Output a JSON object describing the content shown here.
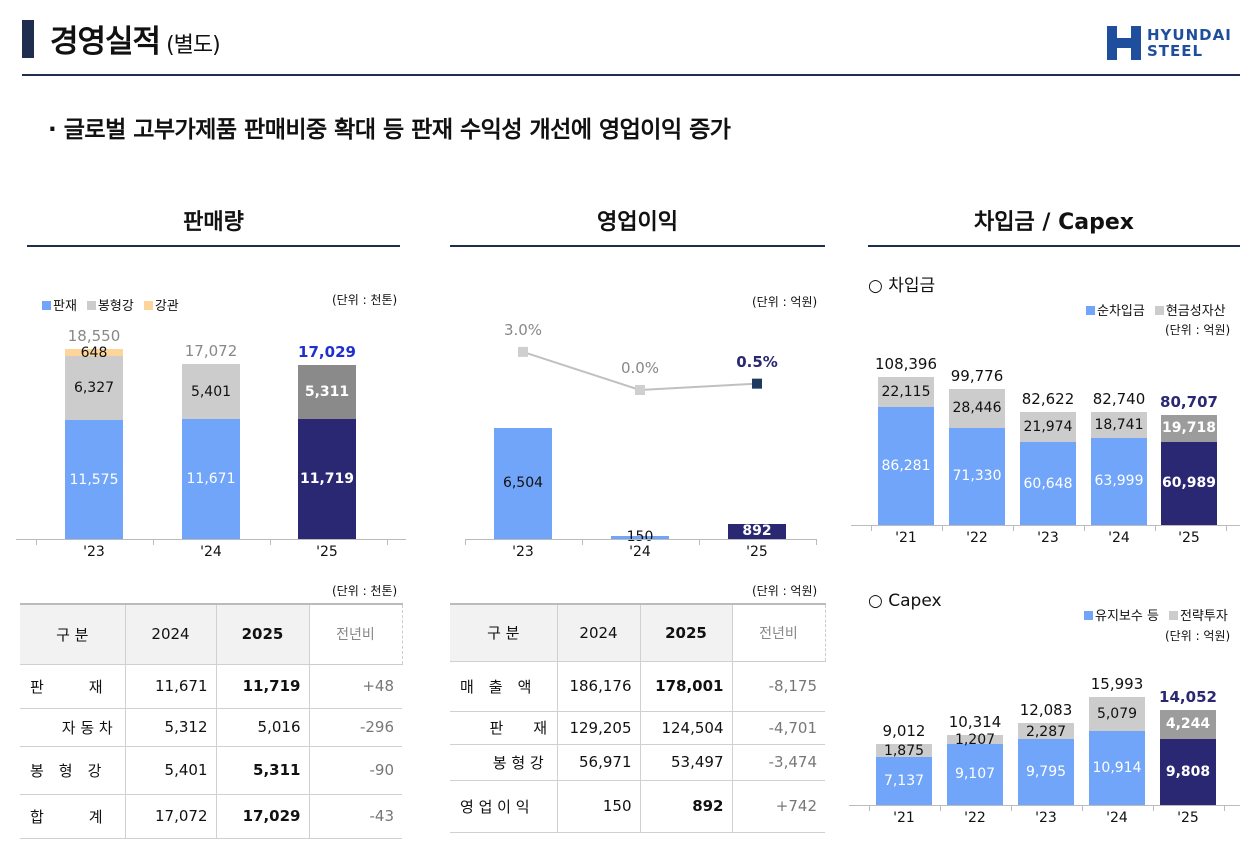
{
  "header": {
    "title": "경영실적",
    "title_suffix": "(별도)",
    "logo_line1": "HYUNDAI",
    "logo_line2": "STEEL"
  },
  "subtitle": "· 글로벌 고부가제품 판매비중 확대 등 판재 수익성 개선에 영업이익 증가",
  "sections": {
    "sales": "판매량",
    "op": "영업이익",
    "debt": "차입금 / Capex"
  },
  "colors": {
    "light_blue": "#70a5f9",
    "gray": "#cccccc",
    "dark_gray": "#8a8a8a",
    "navy": "#2a2872",
    "orange": "#fdd49a",
    "highlight": "#1f2fd0"
  },
  "chart_data": [
    {
      "type": "bar",
      "stacked": true,
      "title": "판매량",
      "unit": "(단위 : 천톤)",
      "categories": [
        "'23",
        "'24",
        "'25"
      ],
      "series": [
        {
          "name": "판재",
          "values": [
            11575,
            11671,
            11719
          ]
        },
        {
          "name": "봉형강",
          "values": [
            6327,
            5401,
            5311
          ]
        },
        {
          "name": "강관",
          "values": [
            648,
            0,
            0
          ]
        }
      ],
      "totals": [
        "18,550",
        "17,072",
        "17,029"
      ],
      "labels": [
        [
          "11,575",
          "11,671",
          "11,719"
        ],
        [
          "6,327",
          "5,401",
          "5,311"
        ],
        [
          "648",
          "",
          ""
        ]
      ]
    },
    {
      "type": "bar+line",
      "title": "영업이익",
      "unit": "(단위 : 억원)",
      "categories": [
        "'23",
        "'24",
        "'25"
      ],
      "bars": {
        "values": [
          6504,
          150,
          892
        ],
        "labels": [
          "6,504",
          "150",
          "892"
        ]
      },
      "line": {
        "values": [
          3.0,
          0.0,
          0.5
        ],
        "labels": [
          "3.0%",
          "0.0%",
          "0.5%"
        ]
      }
    },
    {
      "type": "bar",
      "stacked": true,
      "title": "차입금",
      "heading": "○ 차입금",
      "unit": "(단위 : 억원)",
      "categories": [
        "'21",
        "'22",
        "'23",
        "'24",
        "'25"
      ],
      "series": [
        {
          "name": "순차입금",
          "values": [
            86281,
            71330,
            60648,
            63999,
            60989
          ]
        },
        {
          "name": "현금성자산",
          "values": [
            22115,
            28446,
            21974,
            18741,
            19718
          ]
        }
      ],
      "totals": [
        "108,396",
        "99,776",
        "82,622",
        "82,740",
        "80,707"
      ],
      "labels": [
        [
          "86,281",
          "71,330",
          "60,648",
          "63,999",
          "60,989"
        ],
        [
          "22,115",
          "28,446",
          "21,974",
          "18,741",
          "19,718"
        ]
      ]
    },
    {
      "type": "bar",
      "stacked": true,
      "title": "Capex",
      "heading": "○ Capex",
      "unit": "(단위 : 억원)",
      "categories": [
        "'21",
        "'22",
        "'23",
        "'24",
        "'25"
      ],
      "series": [
        {
          "name": "유지보수 등",
          "values": [
            7137,
            9107,
            9795,
            10914,
            9808
          ]
        },
        {
          "name": "전략투자",
          "values": [
            1875,
            1207,
            2287,
            5079,
            4244
          ]
        }
      ],
      "totals": [
        "9,012",
        "10,314",
        "12,083",
        "15,993",
        "14,052"
      ],
      "labels": [
        [
          "7,137",
          "9,107",
          "9,795",
          "10,914",
          "9,808"
        ],
        [
          "1,875",
          "1,207",
          "2,287",
          "5,079",
          "4,244"
        ]
      ]
    }
  ],
  "table_sales": {
    "unit": "(단위 : 천톤)",
    "headers": [
      "구 분",
      "2024",
      "2025",
      "전년비"
    ],
    "rows": [
      [
        "판　　　재",
        "11,671",
        "11,719",
        "+48"
      ],
      [
        "자 동 차",
        "5,312",
        "5,016",
        "-296"
      ],
      [
        "봉　형　강",
        "5,401",
        "5,311",
        "-90"
      ],
      [
        "합　　　계",
        "17,072",
        "17,029",
        "-43"
      ]
    ]
  },
  "table_op": {
    "unit": "(단위 : 억원)",
    "headers": [
      "구 분",
      "2024",
      "2025",
      "전년비"
    ],
    "rows": [
      [
        "매　출　액",
        "186,176",
        "178,001",
        "-8,175"
      ],
      [
        "판　　재",
        "129,205",
        "124,504",
        "-4,701"
      ],
      [
        "봉 형 강",
        "56,971",
        "53,497",
        "-3,474"
      ],
      [
        "영 업 이 익",
        "150",
        "892",
        "+742"
      ]
    ]
  }
}
